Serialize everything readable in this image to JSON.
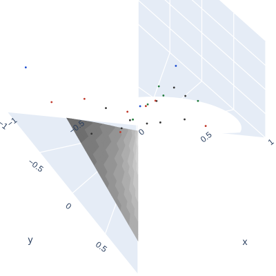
{
  "chart_data": {
    "type": "surface",
    "title": "",
    "axes": {
      "x": {
        "label": "x",
        "range": [
          -1,
          1
        ],
        "ticks": [
          1,
          0.5,
          0,
          -0.5,
          -1
        ],
        "tick_labels": [
          "1",
          "0.5",
          "0",
          "−0.5",
          "−1"
        ]
      },
      "y": {
        "label": "y",
        "range": [
          -1,
          1
        ],
        "ticks": [
          -1,
          -0.5,
          0,
          0.5,
          1
        ],
        "tick_labels": [
          "−1",
          "−0.5",
          "0",
          "0.5",
          ""
        ]
      },
      "z": {
        "label": "",
        "range": [
          0,
          1
        ]
      }
    },
    "grid": true,
    "colorscale": "Greys",
    "surface": {
      "description": "tilted sheet bounded by curved edges, shaded in grayscale contour bands",
      "corners": {
        "x_neg1_y_neg1": 1.0,
        "x_pos1_y_neg1": 0.5,
        "x_neg1_y_pos1": 0.35,
        "x_pos1_y_pos1": 0.05
      },
      "band_count": 16
    },
    "markers": [
      {
        "x": 0.55,
        "y": -0.95,
        "z": 0.05,
        "color": "#c0392b"
      },
      {
        "x": 0.2,
        "y": -0.85,
        "z": 0.05,
        "color": "#333333"
      },
      {
        "x": -0.05,
        "y": -0.95,
        "z": 0.05,
        "color": "#333333"
      },
      {
        "x": 0.45,
        "y": -0.65,
        "z": 0.05,
        "color": "#333333"
      },
      {
        "x": 0.1,
        "y": -0.6,
        "z": 0.05,
        "color": "#333333"
      },
      {
        "x": -0.15,
        "y": -0.55,
        "z": 0.05,
        "color": "#333333"
      },
      {
        "x": -0.45,
        "y": -0.55,
        "z": 0.05,
        "color": "#333333"
      },
      {
        "x": -0.75,
        "y": -0.75,
        "z": 0.3,
        "color": "#c0392b"
      },
      {
        "x": -0.9,
        "y": -0.9,
        "z": 0.55,
        "color": "#1f4fd1"
      },
      {
        "x": 0.85,
        "y": 0.3,
        "z": 0.1,
        "color": "#1f4fd1"
      },
      {
        "x": 0.6,
        "y": 0.05,
        "z": 0.15,
        "color": "#333333"
      },
      {
        "x": 0.45,
        "y": 0.1,
        "z": 0.15,
        "color": "#1f7a3a"
      },
      {
        "x": 0.3,
        "y": 0.0,
        "z": 0.2,
        "color": "#333333"
      },
      {
        "x": 0.15,
        "y": -0.1,
        "z": 0.25,
        "color": "#1f7a3a"
      },
      {
        "x": 0.35,
        "y": 0.2,
        "z": 0.15,
        "color": "#c0392b"
      },
      {
        "x": 0.05,
        "y": 0.1,
        "z": 0.3,
        "color": "#1f4fd1"
      },
      {
        "x": -0.15,
        "y": 0.0,
        "z": 0.35,
        "color": "#c0392b"
      },
      {
        "x": -0.4,
        "y": -0.2,
        "z": 0.45,
        "color": "#333333"
      },
      {
        "x": 0.55,
        "y": 0.4,
        "z": 0.1,
        "color": "#1f7a3a"
      },
      {
        "x": 0.2,
        "y": 0.35,
        "z": 0.2,
        "color": "#c0392b"
      },
      {
        "x": -0.1,
        "y": 0.3,
        "z": 0.3,
        "color": "#1f7a3a"
      },
      {
        "x": -0.35,
        "y": 0.25,
        "z": 0.35,
        "color": "#c0392b"
      },
      {
        "x": -0.6,
        "y": -0.35,
        "z": 0.55,
        "color": "#c0392b"
      },
      {
        "x": 0.7,
        "y": -0.35,
        "z": 0.1,
        "color": "#1f7a3a"
      },
      {
        "x": 0.65,
        "y": -0.15,
        "z": 0.1,
        "color": "#333333"
      }
    ]
  }
}
